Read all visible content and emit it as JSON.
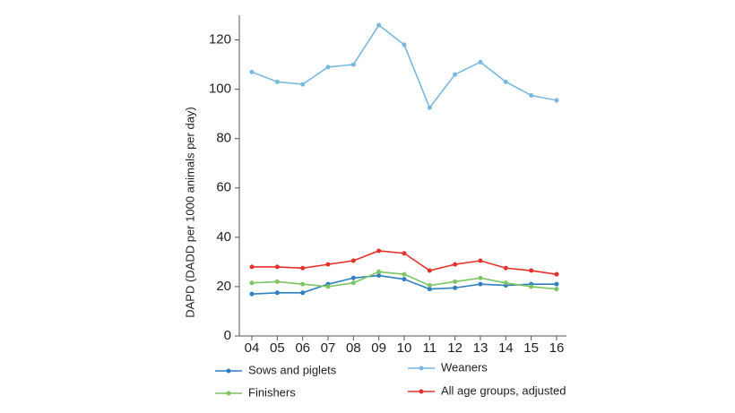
{
  "chart_data": {
    "type": "line",
    "y_label": "DAPD (DADD per 1000 animals per day)",
    "categories": [
      "04",
      "05",
      "06",
      "07",
      "08",
      "09",
      "10",
      "11",
      "12",
      "13",
      "14",
      "15",
      "16"
    ],
    "series": [
      {
        "name": "Sows and piglets",
        "color": "#2e7fc2",
        "values": [
          17,
          17.5,
          17.5,
          21,
          23.5,
          24.5,
          23,
          19,
          19.5,
          21,
          20.5,
          21,
          21
        ]
      },
      {
        "name": "Weaners",
        "color": "#7ab8e0",
        "values": [
          107,
          103,
          102,
          109,
          110,
          126,
          118,
          92.5,
          106,
          111,
          103,
          97.5,
          95.5
        ]
      },
      {
        "name": "Finishers",
        "color": "#7dc462",
        "values": [
          21.5,
          22,
          21,
          20,
          21.5,
          26,
          25,
          20.5,
          22,
          23.5,
          21.5,
          20,
          19
        ]
      },
      {
        "name": "All age groups, adjusted",
        "color": "#e8302a",
        "values": [
          28,
          28,
          27.5,
          29,
          30.5,
          34.5,
          33.5,
          26.5,
          29,
          30.5,
          27.5,
          26.5,
          25
        ]
      }
    ],
    "ylim": [
      0,
      130
    ],
    "yticks": [
      0,
      20,
      40,
      60,
      80,
      100,
      120
    ]
  }
}
